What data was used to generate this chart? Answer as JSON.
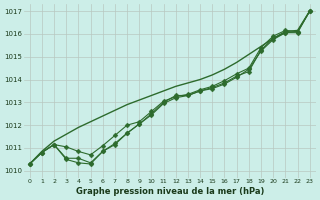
{
  "xlabel": "Graphe pression niveau de la mer (hPa)",
  "bg_color": "#cceee8",
  "line_color": "#2d6b2d",
  "grid_color": "#b8c8c0",
  "xlim": [
    -0.5,
    23.5
  ],
  "ylim": [
    1009.7,
    1017.3
  ],
  "yticks": [
    1010,
    1011,
    1012,
    1013,
    1014,
    1015,
    1016,
    1017
  ],
  "xticks": [
    0,
    1,
    2,
    3,
    4,
    5,
    6,
    7,
    8,
    9,
    10,
    11,
    12,
    13,
    14,
    15,
    16,
    17,
    18,
    19,
    20,
    21,
    22,
    23
  ],
  "smooth_line": [
    1010.3,
    1010.85,
    1011.3,
    1011.6,
    1011.9,
    1012.15,
    1012.4,
    1012.65,
    1012.9,
    1013.1,
    1013.3,
    1013.5,
    1013.7,
    1013.85,
    1014.0,
    1014.2,
    1014.45,
    1014.75,
    1015.1,
    1015.45,
    1015.8,
    1016.1,
    1016.15,
    1017.0
  ],
  "line_markers1": [
    1010.3,
    1010.8,
    1011.15,
    1010.55,
    1010.55,
    1010.35,
    1010.85,
    1011.15,
    1011.65,
    1012.05,
    1012.5,
    1013.0,
    1013.3,
    1013.3,
    1013.5,
    1013.65,
    1013.85,
    1014.15,
    1014.35,
    1015.3,
    1015.8,
    1016.05,
    1016.1,
    1017.0
  ],
  "line_markers2": [
    1010.3,
    1010.8,
    1011.15,
    1010.5,
    1010.35,
    1010.3,
    1010.85,
    1011.2,
    1011.65,
    1012.05,
    1012.45,
    1012.95,
    1013.2,
    1013.3,
    1013.5,
    1013.6,
    1013.8,
    1014.1,
    1014.45,
    1015.25,
    1015.75,
    1016.05,
    1016.05,
    1017.0
  ],
  "line_markers3": [
    1010.3,
    1010.8,
    1011.15,
    1011.05,
    1010.85,
    1010.7,
    1011.1,
    1011.55,
    1012.0,
    1012.15,
    1012.6,
    1013.05,
    1013.25,
    1013.35,
    1013.55,
    1013.7,
    1013.95,
    1014.25,
    1014.5,
    1015.4,
    1015.9,
    1016.15,
    1016.1,
    1017.0
  ]
}
